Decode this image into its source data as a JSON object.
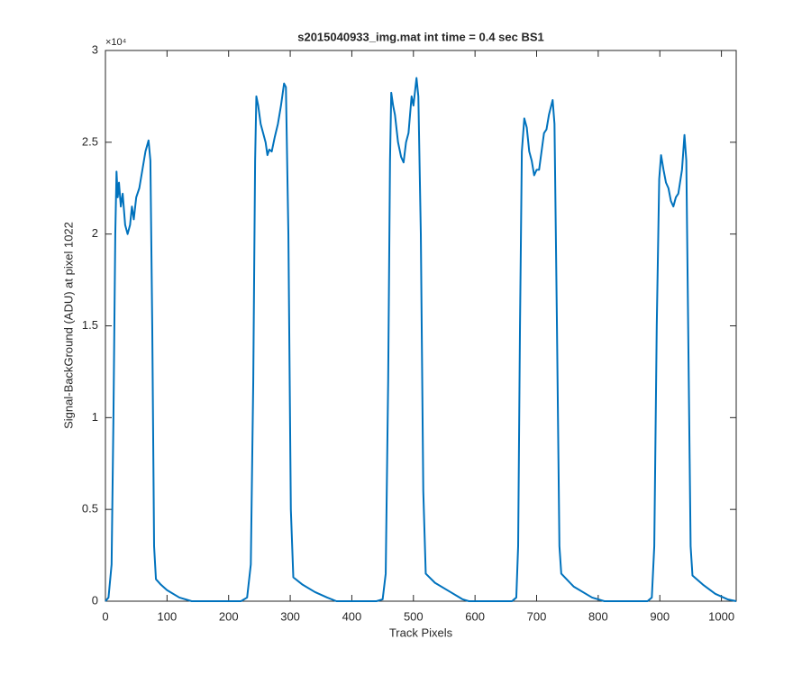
{
  "chart_data": {
    "type": "line",
    "title": "s2015040933_img.mat int time = 0.4 sec   BS1",
    "x_label": "Track Pixels",
    "y_label": "Signal-BackGround (ADU) at pixel 1022",
    "y_exponent_label": "×10⁴",
    "xlim": [
      0,
      1024
    ],
    "xticks": [
      0,
      100,
      200,
      300,
      400,
      500,
      600,
      700,
      800,
      900,
      1000
    ],
    "ylim": [
      0,
      30000
    ],
    "yticks": [
      0,
      {
        "value": 5000,
        "label": "0.5"
      },
      {
        "value": 10000,
        "label": "1"
      },
      {
        "value": 15000,
        "label": "1.5"
      },
      {
        "value": 20000,
        "label": "2"
      },
      {
        "value": 25000,
        "label": "2.5"
      },
      {
        "value": 30000,
        "label": "3"
      }
    ],
    "grid": false,
    "series": [
      {
        "color": "#0072bd",
        "x": [
          0,
          5,
          10,
          13,
          16,
          18,
          20,
          22,
          25,
          28,
          32,
          36,
          40,
          43,
          46,
          50,
          55,
          60,
          65,
          70,
          73,
          76,
          79,
          82,
          90,
          100,
          120,
          140,
          220,
          230,
          236,
          240,
          243,
          245,
          248,
          252,
          256,
          260,
          263,
          266,
          270,
          275,
          280,
          285,
          290,
          293,
          297,
          301,
          305,
          320,
          340,
          360,
          375,
          440,
          450,
          455,
          459,
          462,
          464,
          467,
          470,
          475,
          480,
          484,
          488,
          492,
          497,
          500,
          505,
          508,
          512,
          516,
          520,
          535,
          560,
          580,
          590,
          660,
          667,
          670,
          673,
          676,
          680,
          684,
          688,
          692,
          696,
          700,
          704,
          708,
          712,
          716,
          720,
          726,
          729,
          733,
          737,
          740,
          760,
          790,
          810,
          880,
          887,
          891,
          895,
          899,
          902,
          906,
          910,
          914,
          918,
          922,
          926,
          930,
          936,
          940,
          943,
          947,
          950,
          953,
          970,
          990,
          1010,
          1024
        ],
        "values": [
          0,
          200,
          2000,
          10000,
          20000,
          23400,
          22000,
          22800,
          21500,
          22200,
          20500,
          20000,
          20500,
          21500,
          20800,
          22000,
          22500,
          23500,
          24500,
          25100,
          24000,
          15000,
          3000,
          1200,
          900,
          600,
          200,
          0,
          0,
          200,
          2000,
          12000,
          24000,
          27500,
          27000,
          26000,
          25500,
          25000,
          24300,
          24600,
          24500,
          25300,
          26000,
          27000,
          28200,
          28000,
          20000,
          5000,
          1300,
          900,
          500,
          200,
          0,
          0,
          100,
          1500,
          12000,
          24000,
          27700,
          27000,
          26500,
          25000,
          24200,
          23900,
          25000,
          25500,
          27500,
          27000,
          28500,
          27500,
          20000,
          6000,
          1500,
          1000,
          500,
          100,
          0,
          0,
          200,
          3000,
          15000,
          24500,
          26300,
          25800,
          24500,
          24000,
          23200,
          23500,
          23500,
          24500,
          25500,
          25700,
          26500,
          27300,
          26000,
          15000,
          3000,
          1500,
          800,
          200,
          0,
          0,
          200,
          3000,
          15000,
          23000,
          24300,
          23500,
          22800,
          22500,
          21800,
          21500,
          22000,
          22200,
          23500,
          25400,
          24000,
          12000,
          3000,
          1400,
          900,
          400,
          100,
          0
        ]
      }
    ]
  }
}
